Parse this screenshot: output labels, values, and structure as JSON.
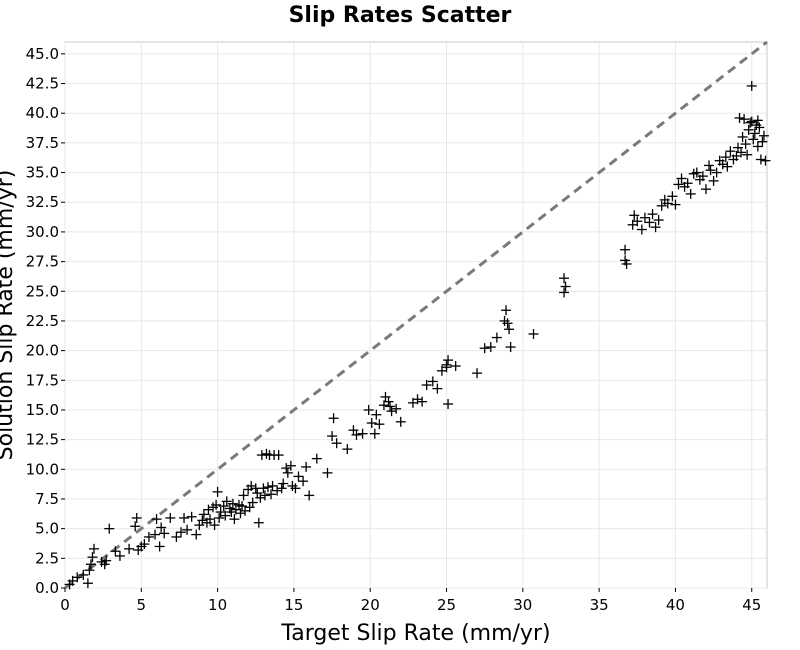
{
  "chart_data": {
    "type": "scatter",
    "title": "Slip Rates Scatter",
    "xlabel": "Target Slip Rate (mm/yr)",
    "ylabel": "Solution Slip Rate (mm/yr)",
    "xlim": [
      0,
      46
    ],
    "ylim": [
      0,
      46
    ],
    "x_ticks": [
      "0",
      "5",
      "10",
      "15",
      "20",
      "25",
      "30",
      "35",
      "40",
      "45"
    ],
    "y_ticks": [
      "0.0",
      "2.5",
      "5.0",
      "7.5",
      "10.0",
      "12.5",
      "15.0",
      "17.5",
      "20.0",
      "22.5",
      "25.0",
      "27.5",
      "30.0",
      "32.5",
      "35.0",
      "37.5",
      "40.0",
      "42.5",
      "45.0"
    ],
    "grid": true,
    "marker": "plus",
    "marker_color": "#000000",
    "reference_line": {
      "style": "dashed",
      "color": "#7a7a7a",
      "from": [
        0,
        0
      ],
      "to": [
        46,
        46
      ]
    },
    "series": [
      {
        "points": [
          [
            0.3,
            0.3
          ],
          [
            0.5,
            0.6
          ],
          [
            0.8,
            0.9
          ],
          [
            1.2,
            1.1
          ],
          [
            1.5,
            0.4
          ],
          [
            1.6,
            1.5
          ],
          [
            1.8,
            2.6
          ],
          [
            1.9,
            3.3
          ],
          [
            1.7,
            2.0
          ],
          [
            2.4,
            2.2
          ],
          [
            2.6,
            2.0
          ],
          [
            2.7,
            2.3
          ],
          [
            2.9,
            5.0
          ],
          [
            3.3,
            3.1
          ],
          [
            3.6,
            2.7
          ],
          [
            4.2,
            3.3
          ],
          [
            4.6,
            5.2
          ],
          [
            4.7,
            5.9
          ],
          [
            4.8,
            3.2
          ],
          [
            5.0,
            3.5
          ],
          [
            5.2,
            3.7
          ],
          [
            5.5,
            4.3
          ],
          [
            5.9,
            4.5
          ],
          [
            6.0,
            5.8
          ],
          [
            6.2,
            3.5
          ],
          [
            6.3,
            5.1
          ],
          [
            6.5,
            4.6
          ],
          [
            6.9,
            5.9
          ],
          [
            7.3,
            4.3
          ],
          [
            7.6,
            4.7
          ],
          [
            7.8,
            5.9
          ],
          [
            8.0,
            4.9
          ],
          [
            8.3,
            6.0
          ],
          [
            8.6,
            4.5
          ],
          [
            8.8,
            5.3
          ],
          [
            9.0,
            5.7
          ],
          [
            9.1,
            6.2
          ],
          [
            9.3,
            5.5
          ],
          [
            9.4,
            6.6
          ],
          [
            9.5,
            5.8
          ],
          [
            9.7,
            6.8
          ],
          [
            9.8,
            5.3
          ],
          [
            9.9,
            7.0
          ],
          [
            10.0,
            8.1
          ],
          [
            10.1,
            5.9
          ],
          [
            10.2,
            6.4
          ],
          [
            10.4,
            6.9
          ],
          [
            10.5,
            6.1
          ],
          [
            10.6,
            7.3
          ],
          [
            10.8,
            6.7
          ],
          [
            10.9,
            6.4
          ],
          [
            11.0,
            7.1
          ],
          [
            11.1,
            5.8
          ],
          [
            11.2,
            6.6
          ],
          [
            11.4,
            7.0
          ],
          [
            11.5,
            6.3
          ],
          [
            11.6,
            6.9
          ],
          [
            11.7,
            7.8
          ],
          [
            11.8,
            6.5
          ],
          [
            12.0,
            8.3
          ],
          [
            12.1,
            6.8
          ],
          [
            12.2,
            8.6
          ],
          [
            12.3,
            7.2
          ],
          [
            12.5,
            8.4
          ],
          [
            12.6,
            8.0
          ],
          [
            12.7,
            5.5
          ],
          [
            12.8,
            7.6
          ],
          [
            12.9,
            11.2
          ],
          [
            13.0,
            8.4
          ],
          [
            13.1,
            7.8
          ],
          [
            13.2,
            11.3
          ],
          [
            13.3,
            8.5
          ],
          [
            13.4,
            11.2
          ],
          [
            13.5,
            7.9
          ],
          [
            13.6,
            8.6
          ],
          [
            13.7,
            11.2
          ],
          [
            13.9,
            8.2
          ],
          [
            14.0,
            11.2
          ],
          [
            14.2,
            8.4
          ],
          [
            14.3,
            8.8
          ],
          [
            14.5,
            10.1
          ],
          [
            14.6,
            9.7
          ],
          [
            14.8,
            10.3
          ],
          [
            14.9,
            8.6
          ],
          [
            15.1,
            8.4
          ],
          [
            15.3,
            9.4
          ],
          [
            15.6,
            9.0
          ],
          [
            15.8,
            10.2
          ],
          [
            16.0,
            7.8
          ],
          [
            16.5,
            10.9
          ],
          [
            17.2,
            9.7
          ],
          [
            17.5,
            12.8
          ],
          [
            17.6,
            14.3
          ],
          [
            17.8,
            12.2
          ],
          [
            18.5,
            11.7
          ],
          [
            18.9,
            13.3
          ],
          [
            19.1,
            12.9
          ],
          [
            19.5,
            13.0
          ],
          [
            19.9,
            15.0
          ],
          [
            20.1,
            13.9
          ],
          [
            20.3,
            13.0
          ],
          [
            20.4,
            14.6
          ],
          [
            20.6,
            13.8
          ],
          [
            20.9,
            15.4
          ],
          [
            21.0,
            16.1
          ],
          [
            21.2,
            15.7
          ],
          [
            21.3,
            15.3
          ],
          [
            21.4,
            14.9
          ],
          [
            21.7,
            15.1
          ],
          [
            22.0,
            14.0
          ],
          [
            22.8,
            15.6
          ],
          [
            23.1,
            15.9
          ],
          [
            23.4,
            15.7
          ],
          [
            23.7,
            17.1
          ],
          [
            24.1,
            17.4
          ],
          [
            24.4,
            16.8
          ],
          [
            24.7,
            18.3
          ],
          [
            25.0,
            18.6
          ],
          [
            25.1,
            19.2
          ],
          [
            25.0,
            18.8
          ],
          [
            25.1,
            15.5
          ],
          [
            25.6,
            18.7
          ],
          [
            27.0,
            18.1
          ],
          [
            27.5,
            20.2
          ],
          [
            27.9,
            20.3
          ],
          [
            28.3,
            21.1
          ],
          [
            28.8,
            22.5
          ],
          [
            28.9,
            23.4
          ],
          [
            29.0,
            22.3
          ],
          [
            29.1,
            21.8
          ],
          [
            29.2,
            20.3
          ],
          [
            30.7,
            21.4
          ],
          [
            32.7,
            24.9
          ],
          [
            32.8,
            25.4
          ],
          [
            32.7,
            26.1
          ],
          [
            36.7,
            27.6
          ],
          [
            36.7,
            28.5
          ],
          [
            36.8,
            27.3
          ],
          [
            37.2,
            30.6
          ],
          [
            37.3,
            31.4
          ],
          [
            37.5,
            30.9
          ],
          [
            37.8,
            30.2
          ],
          [
            38.0,
            31.2
          ],
          [
            38.3,
            30.8
          ],
          [
            38.5,
            31.5
          ],
          [
            38.7,
            30.4
          ],
          [
            38.9,
            31.0
          ],
          [
            39.1,
            32.2
          ],
          [
            39.3,
            32.7
          ],
          [
            39.5,
            32.4
          ],
          [
            39.8,
            33.0
          ],
          [
            40.0,
            32.3
          ],
          [
            40.2,
            34.0
          ],
          [
            40.4,
            34.5
          ],
          [
            40.6,
            33.8
          ],
          [
            40.8,
            34.1
          ],
          [
            41.0,
            33.2
          ],
          [
            41.2,
            34.9
          ],
          [
            41.4,
            35.0
          ],
          [
            41.6,
            34.4
          ],
          [
            41.8,
            34.7
          ],
          [
            42.0,
            33.6
          ],
          [
            42.2,
            35.6
          ],
          [
            42.3,
            35.2
          ],
          [
            42.5,
            34.3
          ],
          [
            42.7,
            35.0
          ],
          [
            42.9,
            36.0
          ],
          [
            43.1,
            35.7
          ],
          [
            43.3,
            36.3
          ],
          [
            43.4,
            35.5
          ],
          [
            43.6,
            36.8
          ],
          [
            43.8,
            36.1
          ],
          [
            44.0,
            36.4
          ],
          [
            44.1,
            37.1
          ],
          [
            44.3,
            36.7
          ],
          [
            44.4,
            38.0
          ],
          [
            44.6,
            37.4
          ],
          [
            44.7,
            36.5
          ],
          [
            44.8,
            38.6
          ],
          [
            44.9,
            39.2
          ],
          [
            45.0,
            42.3
          ],
          [
            45.1,
            37.8
          ],
          [
            45.2,
            38.3
          ],
          [
            45.3,
            39.0
          ],
          [
            45.4,
            37.2
          ],
          [
            45.5,
            38.8
          ],
          [
            45.6,
            36.1
          ],
          [
            45.7,
            37.6
          ],
          [
            45.8,
            38.1
          ],
          [
            45.9,
            36.0
          ],
          [
            44.2,
            39.6
          ],
          [
            44.5,
            39.5
          ],
          [
            45.0,
            39.3
          ],
          [
            45.4,
            39.4
          ]
        ]
      }
    ]
  }
}
